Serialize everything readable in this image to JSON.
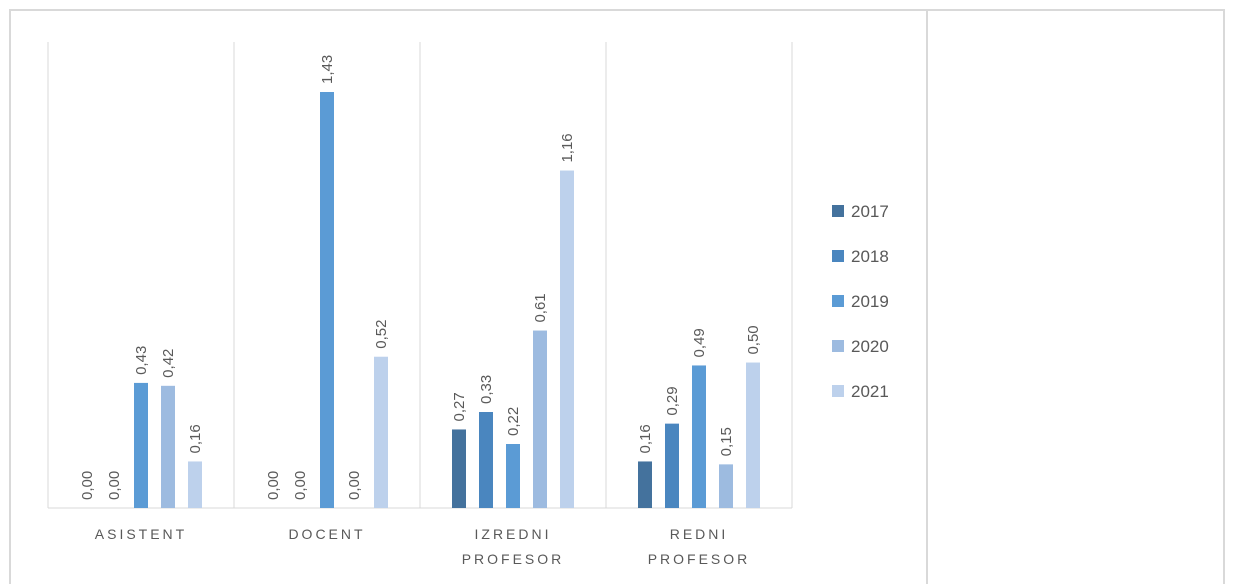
{
  "chart_data": {
    "type": "bar",
    "categories": [
      "ASISTENT",
      "DOCENT",
      "IZREDNI PROFESOR",
      "REDNI PROFESOR"
    ],
    "series": [
      {
        "name": "2017",
        "color": "#44729d",
        "values": [
          0,
          0,
          0.27,
          0.16
        ],
        "value_labels": [
          "0,00",
          "0,00",
          "0,27",
          "0,16"
        ]
      },
      {
        "name": "2018",
        "color": "#4a86bf",
        "values": [
          0,
          0,
          0.33,
          0.29
        ],
        "value_labels": [
          "0,00",
          "0,00",
          "0,33",
          "0,29"
        ]
      },
      {
        "name": "2019",
        "color": "#5b9bd5",
        "values": [
          0.43,
          1.43,
          0.22,
          0.49
        ],
        "value_labels": [
          "0,43",
          "1,43",
          "0,22",
          "0,49"
        ]
      },
      {
        "name": "2020",
        "color": "#9dbbe0",
        "values": [
          0.42,
          0,
          0.61,
          0.15
        ],
        "value_labels": [
          "0,42",
          "0,00",
          "0,61",
          "0,15"
        ]
      },
      {
        "name": "2021",
        "color": "#bdd1ec",
        "values": [
          0.16,
          0.52,
          1.16,
          0.5
        ],
        "value_labels": [
          "0,16",
          "0,52",
          "1,16",
          "0,50"
        ]
      }
    ],
    "legend": "right"
  }
}
